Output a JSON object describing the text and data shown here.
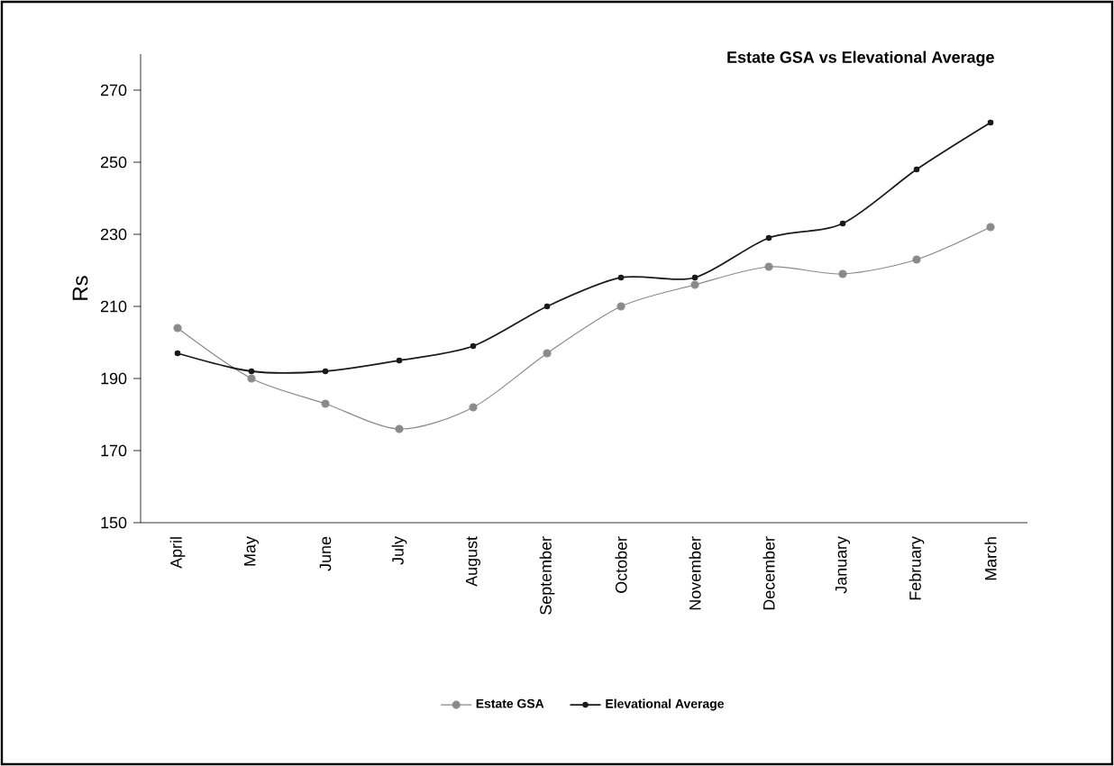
{
  "chart_data": {
    "type": "line",
    "title": "Estate GSA  vs  Elevational Average",
    "ylabel": "Rs",
    "categories": [
      "April",
      "May",
      "June",
      "July",
      "August",
      "September",
      "October",
      "November",
      "December",
      "January",
      "February",
      "March"
    ],
    "series": [
      {
        "name": "Estate GSA",
        "color": "#8a8a8a",
        "marker": "circle",
        "values": [
          204,
          190,
          183,
          176,
          182,
          197,
          210,
          216,
          221,
          219,
          223,
          232
        ]
      },
      {
        "name": "Elevational Average",
        "color": "#1a1a1a",
        "marker": "circle",
        "values": [
          197,
          192,
          192,
          195,
          199,
          210,
          218,
          218,
          229,
          233,
          248,
          261
        ]
      }
    ],
    "ylim": [
      150,
      280
    ],
    "yticks": [
      150,
      170,
      190,
      210,
      230,
      250,
      270
    ],
    "grid": false,
    "legend": "bottom"
  }
}
